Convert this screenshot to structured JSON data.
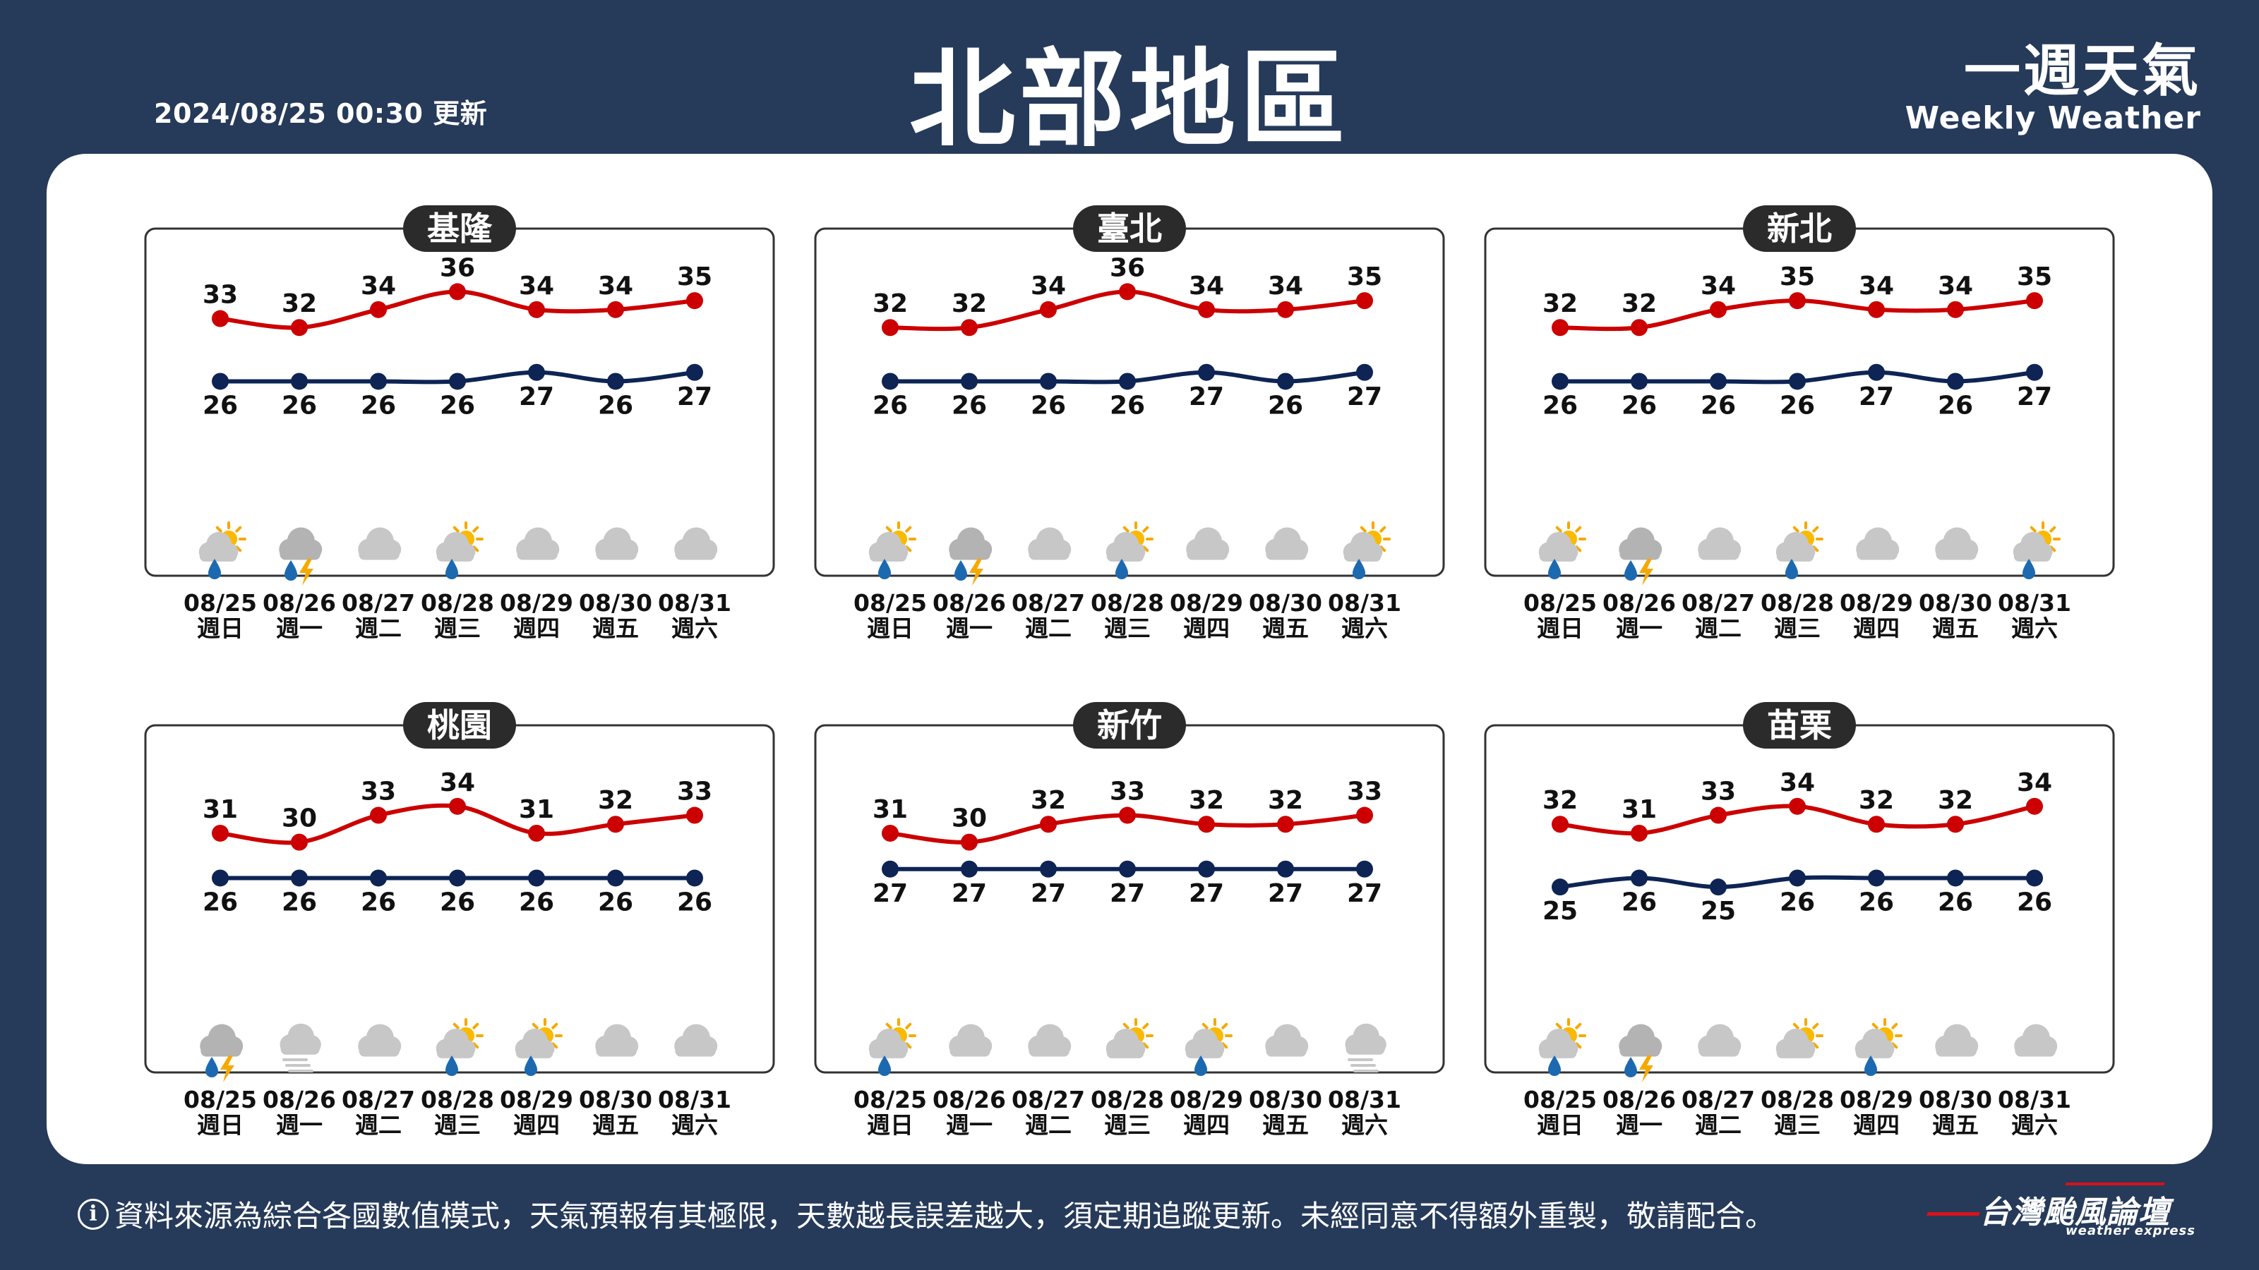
{
  "header": {
    "timestamp": "2024/08/25 00:30 更新",
    "title": "北部地區",
    "brand_zh": "一週天氣",
    "brand_en": "Weekly Weather"
  },
  "colors": {
    "high_line": "#cc0000",
    "low_line": "#0d2454",
    "background": "#263a5a",
    "panel": "#ffffff",
    "label_pill": "#2b2b2b"
  },
  "chart_data": [
    {
      "type": "line",
      "region": "基隆",
      "x": [
        "08/25",
        "08/26",
        "08/27",
        "08/28",
        "08/29",
        "08/30",
        "08/31"
      ],
      "weekdays": [
        "週日",
        "週一",
        "週二",
        "週三",
        "週四",
        "週五",
        "週六"
      ],
      "series": [
        {
          "key": "high",
          "values": [
            33,
            32,
            34,
            36,
            34,
            34,
            35
          ]
        },
        {
          "key": "low",
          "values": [
            26,
            26,
            26,
            26,
            27,
            26,
            27
          ]
        }
      ],
      "weather_icons": [
        "sun-cloud-rain-icon",
        "cloud-thunder-rain-icon",
        "cloudy-icon",
        "sun-cloud-rain-icon",
        "cloudy-icon",
        "cloudy-icon",
        "cloudy-icon"
      ]
    },
    {
      "type": "line",
      "region": "臺北",
      "x": [
        "08/25",
        "08/26",
        "08/27",
        "08/28",
        "08/29",
        "08/30",
        "08/31"
      ],
      "weekdays": [
        "週日",
        "週一",
        "週二",
        "週三",
        "週四",
        "週五",
        "週六"
      ],
      "series": [
        {
          "key": "high",
          "values": [
            32,
            32,
            34,
            36,
            34,
            34,
            35
          ]
        },
        {
          "key": "low",
          "values": [
            26,
            26,
            26,
            26,
            27,
            26,
            27
          ]
        }
      ],
      "weather_icons": [
        "sun-cloud-rain-icon",
        "cloud-thunder-rain-icon",
        "cloudy-icon",
        "sun-cloud-rain-icon",
        "cloudy-icon",
        "cloudy-icon",
        "sun-cloud-rain-icon"
      ]
    },
    {
      "type": "line",
      "region": "新北",
      "x": [
        "08/25",
        "08/26",
        "08/27",
        "08/28",
        "08/29",
        "08/30",
        "08/31"
      ],
      "weekdays": [
        "週日",
        "週一",
        "週二",
        "週三",
        "週四",
        "週五",
        "週六"
      ],
      "series": [
        {
          "key": "high",
          "values": [
            32,
            32,
            34,
            35,
            34,
            34,
            35
          ]
        },
        {
          "key": "low",
          "values": [
            26,
            26,
            26,
            26,
            27,
            26,
            27
          ]
        }
      ],
      "weather_icons": [
        "sun-cloud-rain-icon",
        "cloud-thunder-rain-icon",
        "cloudy-icon",
        "sun-cloud-rain-icon",
        "cloudy-icon",
        "cloudy-icon",
        "sun-cloud-rain-icon"
      ]
    },
    {
      "type": "line",
      "region": "桃園",
      "x": [
        "08/25",
        "08/26",
        "08/27",
        "08/28",
        "08/29",
        "08/30",
        "08/31"
      ],
      "weekdays": [
        "週日",
        "週一",
        "週二",
        "週三",
        "週四",
        "週五",
        "週六"
      ],
      "series": [
        {
          "key": "high",
          "values": [
            31,
            30,
            33,
            34,
            31,
            32,
            33
          ]
        },
        {
          "key": "low",
          "values": [
            26,
            26,
            26,
            26,
            26,
            26,
            26
          ]
        }
      ],
      "weather_icons": [
        "cloud-thunder-rain-icon",
        "fog-cloud-icon",
        "cloudy-icon",
        "sun-cloud-rain-icon",
        "sun-cloud-rain-icon",
        "cloudy-icon",
        "cloudy-icon"
      ]
    },
    {
      "type": "line",
      "region": "新竹",
      "x": [
        "08/25",
        "08/26",
        "08/27",
        "08/28",
        "08/29",
        "08/30",
        "08/31"
      ],
      "weekdays": [
        "週日",
        "週一",
        "週二",
        "週三",
        "週四",
        "週五",
        "週六"
      ],
      "series": [
        {
          "key": "high",
          "values": [
            31,
            30,
            32,
            33,
            32,
            32,
            33
          ]
        },
        {
          "key": "low",
          "values": [
            27,
            27,
            27,
            27,
            27,
            27,
            27
          ]
        }
      ],
      "weather_icons": [
        "sun-cloud-rain-icon",
        "cloudy-icon",
        "cloudy-icon",
        "sun-cloud-icon",
        "sun-cloud-rain-icon",
        "cloudy-icon",
        "fog-cloud-icon"
      ]
    },
    {
      "type": "line",
      "region": "苗栗",
      "x": [
        "08/25",
        "08/26",
        "08/27",
        "08/28",
        "08/29",
        "08/30",
        "08/31"
      ],
      "weekdays": [
        "週日",
        "週一",
        "週二",
        "週三",
        "週四",
        "週五",
        "週六"
      ],
      "series": [
        {
          "key": "high",
          "values": [
            32,
            31,
            33,
            34,
            32,
            32,
            34
          ]
        },
        {
          "key": "low",
          "values": [
            25,
            26,
            25,
            26,
            26,
            26,
            26
          ]
        }
      ],
      "weather_icons": [
        "sun-cloud-rain-icon",
        "cloud-thunder-rain-icon",
        "cloudy-icon",
        "sun-cloud-icon",
        "sun-cloud-rain-icon",
        "cloudy-icon",
        "cloudy-icon"
      ]
    }
  ],
  "footer": {
    "disclaimer": "資料來源為綜合各國數值模式，天氣預報有其極限，天數越長誤差越大，須定期追蹤更新。未經同意不得額外重製，敬請配合。",
    "logo_zh": "台灣颱風論壇",
    "logo_en": "weather express"
  }
}
